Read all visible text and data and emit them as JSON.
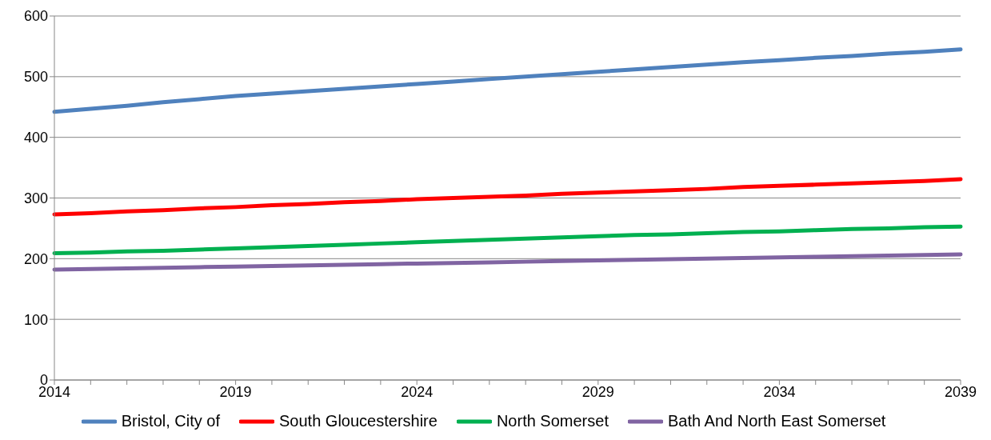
{
  "chart_data": {
    "type": "line",
    "categories": [
      "2014",
      null,
      null,
      null,
      null,
      "2019",
      null,
      null,
      null,
      null,
      "2024",
      null,
      null,
      null,
      null,
      "2029",
      null,
      null,
      null,
      null,
      "2034",
      null,
      null,
      null,
      null,
      "2039"
    ],
    "series": [
      {
        "name": "Bristol, City of",
        "color": "#4f81bd",
        "values": [
          442,
          447,
          452,
          458,
          463,
          468,
          472,
          476,
          480,
          484,
          488,
          492,
          496,
          500,
          504,
          508,
          512,
          516,
          520,
          524,
          527,
          531,
          534,
          538,
          541,
          545
        ]
      },
      {
        "name": "South Gloucestershire",
        "color": "#ff0000",
        "values": [
          273,
          275,
          278,
          280,
          283,
          285,
          288,
          290,
          293,
          295,
          298,
          300,
          302,
          304,
          307,
          309,
          311,
          313,
          315,
          318,
          320,
          322,
          324,
          326,
          328,
          331
        ]
      },
      {
        "name": "North Somerset",
        "color": "#00b050",
        "values": [
          209,
          210,
          212,
          213,
          215,
          217,
          219,
          221,
          223,
          225,
          227,
          229,
          231,
          233,
          235,
          237,
          239,
          240,
          242,
          244,
          245,
          247,
          249,
          250,
          252,
          253
        ]
      },
      {
        "name": "Bath And North East Somerset",
        "color": "#8064a2",
        "values": [
          182,
          183,
          184,
          185,
          186,
          187,
          188,
          189,
          190,
          191,
          192,
          193,
          194,
          195,
          196,
          197,
          198,
          199,
          200,
          201,
          202,
          203,
          204,
          205,
          206,
          207
        ]
      }
    ],
    "ylim": [
      0,
      600
    ],
    "yticks": [
      0,
      100,
      200,
      300,
      400,
      500,
      600
    ],
    "grid": "y",
    "legend": "bottom",
    "marker": "none",
    "line_style": "solid"
  }
}
